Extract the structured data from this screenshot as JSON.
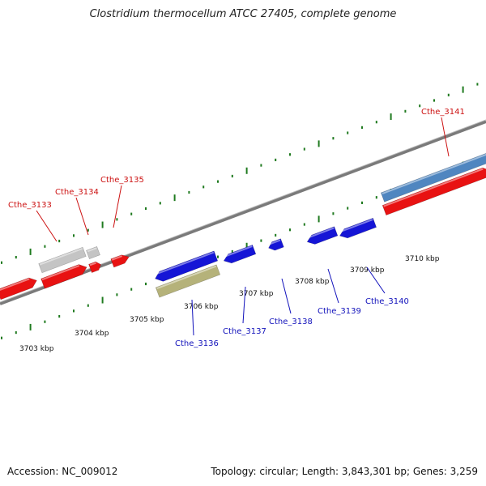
{
  "title": "Clostridium thermocellum ATCC 27405, complete genome",
  "footer": {
    "accession": "Accession: NC_009012",
    "summary": "Topology: circular; Length: 3,843,301 bp; Genes: 3,259"
  },
  "colors": {
    "forward_gene": "#e81212",
    "reverse_gene": "#1515d6",
    "pseudo_gene": "#c4c4c4",
    "rna_gene": "#b5b27a",
    "highlight_gene": "#4f86c0",
    "backbone": "#7a7a7a",
    "tick": "#1f7a1f",
    "forward_label": "#cc1111",
    "reverse_label": "#1111bb"
  },
  "scale_labels": [
    "3703 kbp",
    "3704 kbp",
    "3705 kbp",
    "3706 kbp",
    "3707 kbp",
    "3708 kbp",
    "3709 kbp",
    "3710 kbp"
  ],
  "gene_labels": [
    {
      "text": "Cthe_3133",
      "strand": "forward"
    },
    {
      "text": "Cthe_3134",
      "strand": "forward"
    },
    {
      "text": "Cthe_3135",
      "strand": "forward"
    },
    {
      "text": "Cthe_3141",
      "strand": "forward"
    },
    {
      "text": "Cthe_3136",
      "strand": "reverse"
    },
    {
      "text": "Cthe_3137",
      "strand": "reverse"
    },
    {
      "text": "Cthe_3138",
      "strand": "reverse"
    },
    {
      "text": "Cthe_3139",
      "strand": "reverse"
    },
    {
      "text": "Cthe_3140",
      "strand": "reverse"
    }
  ]
}
